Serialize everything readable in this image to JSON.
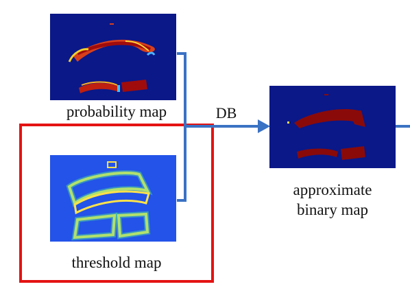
{
  "nodes": {
    "probability_map": {
      "label": "probability map"
    },
    "threshold_map": {
      "label": "threshold map"
    },
    "approximate_binary_map": {
      "label": "approximate\nbinary map"
    }
  },
  "edges": [
    {
      "from": "probability_map",
      "to": "approximate_binary_map",
      "label": "DB"
    },
    {
      "from": "threshold_map",
      "to": "approximate_binary_map",
      "label": "DB"
    }
  ],
  "colors": {
    "highlight_box": "#e41313",
    "connector": "#3a72c4",
    "map_background": "#0b1a8a",
    "probability_high": "#a60f0f",
    "threshold_band": "#ffe24a"
  }
}
